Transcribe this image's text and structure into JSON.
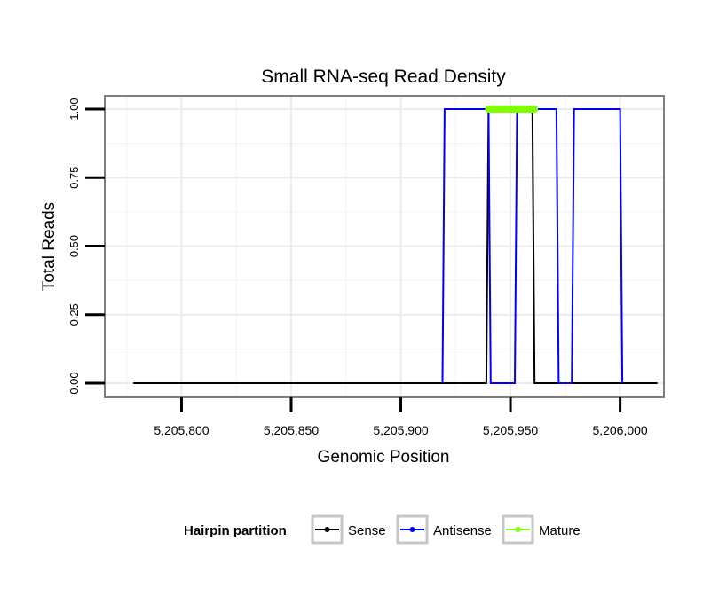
{
  "chart_data": {
    "type": "line",
    "title": "Small RNA-seq Read Density",
    "xlabel": "Genomic Position",
    "ylabel": "Total Reads",
    "xlim": [
      5205765,
      5206020
    ],
    "ylim": [
      0,
      1
    ],
    "x_ticks": [
      5205800,
      5205850,
      5205900,
      5205950,
      5206000
    ],
    "x_tick_labels": [
      "5,205,800",
      "5,205,850",
      "5,205,900",
      "5,205,950",
      "5,206,000"
    ],
    "y_ticks": [
      0,
      0.25,
      0.5,
      0.75,
      1.0
    ],
    "y_tick_labels": [
      "0.00",
      "0.25",
      "0.50",
      "0.75",
      "1.00"
    ],
    "grid": true,
    "legend_title": "Hairpin partition",
    "legend_position": "bottom",
    "series": [
      {
        "name": "Sense",
        "color": "#000000",
        "x": [
          5205778,
          5205939,
          5205940,
          5205941,
          5205959,
          5205960,
          5205961,
          5206017
        ],
        "y": [
          0,
          0,
          1,
          1,
          1,
          1,
          0,
          0
        ]
      },
      {
        "name": "Antisense",
        "color": "#0000ff",
        "x": [
          5205919,
          5205920,
          5205921,
          5205940,
          5205941,
          5205952,
          5205953,
          5205970,
          5205971,
          5205972,
          5205978,
          5205979,
          5205980,
          5206000,
          5206001
        ],
        "y": [
          0,
          1,
          1,
          1,
          0,
          0,
          1,
          1,
          1,
          0,
          0,
          1,
          1,
          1,
          0
        ]
      },
      {
        "name": "Mature",
        "color": "#7fff00",
        "x": [
          5205940,
          5205961
        ],
        "y": [
          1,
          1
        ]
      }
    ]
  }
}
